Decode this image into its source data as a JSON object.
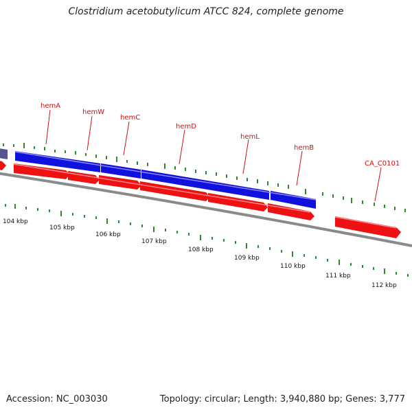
{
  "title": "Clostridium acetobutylicum ATCC 824, complete genome",
  "footer": {
    "accession": "Accession: NC_003030",
    "summary": "Topology: circular; Length: 3,940,880 bp; Genes: 3,777"
  },
  "colors": {
    "backbone": "#8a8a8a",
    "forward_gene": "#1111dd",
    "reverse_gene": "#ee1111",
    "gc_tick": "#2f8a2f",
    "label": "#cc1111"
  },
  "scale_labels": [
    "104 kbp",
    "105 kbp",
    "106 kbp",
    "107 kbp",
    "108 kbp",
    "109 kbp",
    "110 kbp",
    "111 kbp",
    "112 kbp"
  ],
  "genes": [
    {
      "name": "hemA",
      "strand": "+"
    },
    {
      "name": "hemW",
      "strand": "+"
    },
    {
      "name": "hemC",
      "strand": "+"
    },
    {
      "name": "hemD",
      "strand": "+"
    },
    {
      "name": "hemL",
      "strand": "+"
    },
    {
      "name": "hemB",
      "strand": "+"
    },
    {
      "name": "CA_C0101",
      "strand": "-"
    }
  ]
}
